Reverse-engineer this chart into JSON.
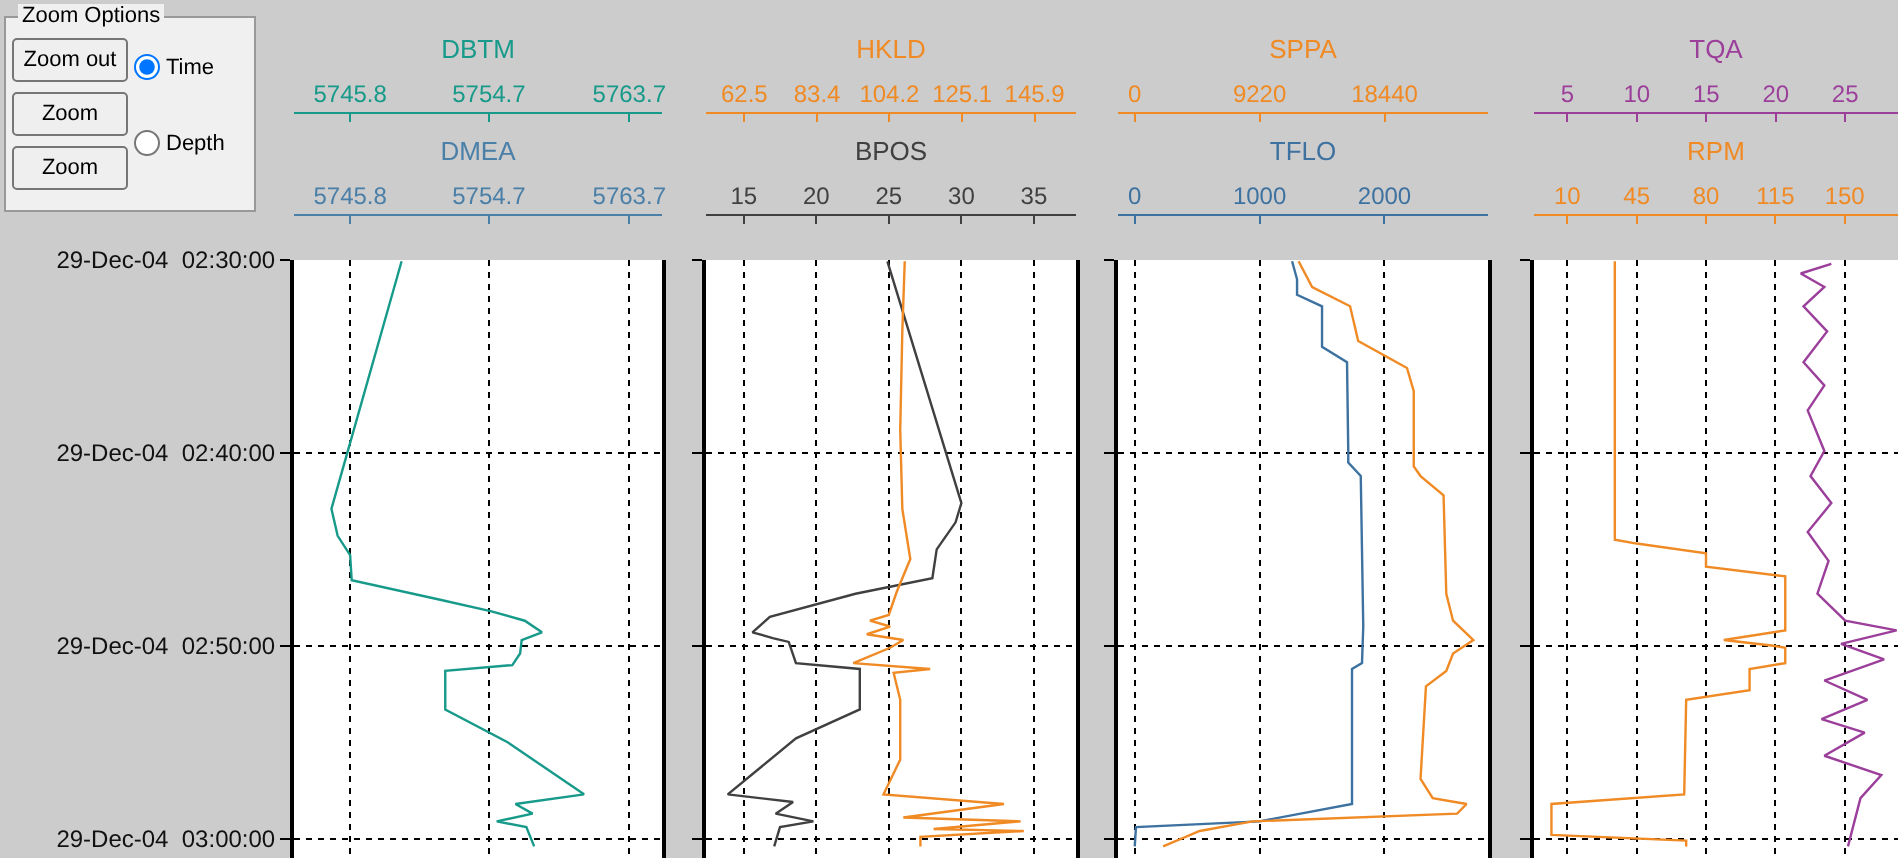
{
  "chart_data": [
    {
      "type": "line",
      "orientation": "horizontal",
      "xlabel": "DMEA",
      "x2label": "DBTM",
      "xlim": [
        5742.2,
        5765.8
      ],
      "xticks": [
        5745.8,
        5754.7,
        5763.7
      ],
      "x2lim": [
        5742.2,
        5765.8
      ],
      "x2ticks": [
        5745.8,
        5754.7,
        5763.7
      ],
      "ylim": [
        "--12-29T03:01",
        "--12-29T02:30"
      ],
      "yticks": [
        {
          "value": "--12-29T02:30",
          "label": "29-Dec-04  02:30:00"
        },
        {
          "value": "--12-29T02:40",
          "label": "29-Dec-04  02:40:00"
        },
        {
          "value": "--12-29T02:50",
          "label": "29-Dec-04  02:50:00"
        },
        {
          "value": "--12-29T03:00",
          "label": "29-Dec-04  03:00:00"
        }
      ],
      "grid": true,
      "annotations": [
        "Zoom Options",
        "Zoom out",
        "Zoom",
        "Zoom",
        "Time",
        "Depth"
      ],
      "series": [
        {
          "color": "#179a8a",
          "axis": "x2",
          "x": [
            "--12-29T02:30:04",
            "--12-29T02:42:54",
            "--12-29T02:44:18",
            "--12-29T02:45:18",
            "--12-29T02:46:36",
            "--12-29T02:47:36",
            "--12-29T02:48:12",
            "--12-29T02:48:42",
            "--12-29T02:49:18",
            "--12-29T02:49:42",
            "--12-29T02:50:24",
            "--12-29T02:51:00",
            "--12-29T02:51:18",
            "--12-29T02:53:18",
            "--12-29T02:55:00",
            "--12-29T02:57:42",
            "--12-29T02:58:12",
            "--12-29T02:58:42",
            "--12-29T02:59:06",
            "--12-29T02:59:24",
            "--12-29T03:00:24"
          ],
          "values": [
            5749.1,
            5744.6,
            5745.0,
            5745.8,
            5745.9,
            5751.5,
            5754.8,
            5757.0,
            5758.1,
            5756.8,
            5756.7,
            5756.2,
            5751.9,
            5751.9,
            5755.9,
            5760.8,
            5756.4,
            5757.5,
            5755.2,
            5757.1,
            5757.6
          ]
        }
      ]
    },
    {
      "type": "line",
      "orientation": "horizontal",
      "xlabel": "BPOS",
      "x2label": "HKLD",
      "xlim": [
        12.4,
        37.9
      ],
      "xticks": [
        15,
        20,
        25,
        30,
        35
      ],
      "x2lim": [
        51.5,
        157.8
      ],
      "x2ticks": [
        62.5,
        83.4,
        104.2,
        125.1,
        145.9
      ],
      "ylim": [
        "--12-29T03:01",
        "--12-29T02:30"
      ],
      "yticks": [
        {
          "value": "--12-29T02:30",
          "label": null
        },
        {
          "value": "--12-29T02:40",
          "label": null
        },
        {
          "value": "--12-29T02:50",
          "label": null
        },
        {
          "value": "--12-29T03:00",
          "label": null
        }
      ],
      "grid": true,
      "tick_labels": "x",
      "series": [
        {
          "color": "#404040",
          "x": [
            "--12-29T02:30:04",
            "--12-29T02:42:36",
            "--12-29T02:43:36",
            "--12-29T02:45:00",
            "--12-29T02:46:30",
            "--12-29T02:47:18",
            "--12-29T02:48:30",
            "--12-29T02:49:18",
            "--12-29T02:49:36",
            "--12-29T02:49:48",
            "--12-29T02:50:54",
            "--12-29T02:51:12",
            "--12-29T02:53:18",
            "--12-29T02:54:48",
            "--12-29T02:57:42",
            "--12-29T02:58:06",
            "--12-29T02:58:42",
            "--12-29T02:59:06",
            "--12-29T02:59:24",
            "--12-29T03:00:24"
          ],
          "values": [
            24.9,
            30.0,
            29.6,
            28.3,
            28.0,
            22.7,
            16.8,
            15.6,
            17.0,
            18.1,
            18.6,
            23.0,
            23.0,
            18.6,
            13.9,
            18.4,
            17.2,
            19.8,
            17.5,
            17.1
          ]
        },
        {
          "color": "#f08a24",
          "axis": "x2",
          "x": [
            "--12-29T02:30:04",
            "--12-29T02:33:42",
            "--12-29T02:38:48",
            "--12-29T02:42:54",
            "--12-29T02:45:30",
            "--12-29T02:47:12",
            "--12-29T02:48:24",
            "--12-29T02:48:42",
            "--12-29T02:49:00",
            "--12-29T02:49:24",
            "--12-29T02:49:42",
            "--12-29T02:50:06",
            "--12-29T02:50:54",
            "--12-29T02:51:12",
            "--12-29T02:51:24",
            "--12-29T02:52:48",
            "--12-29T02:55:54",
            "--12-29T02:57:42",
            "--12-29T02:58:12",
            "--12-29T02:58:54",
            "--12-29T02:59:06",
            "--12-29T02:59:30",
            "--12-29T02:59:36",
            "--12-29T02:59:54",
            "--12-29T03:00:24"
          ],
          "values": [
            108.6,
            107.9,
            107.3,
            107.9,
            110.2,
            106.3,
            104.0,
            98.6,
            104.4,
            97.7,
            108.2,
            104.4,
            93.8,
            115.9,
            105.4,
            107.3,
            107.3,
            102.5,
            137.1,
            108.2,
            141.9,
            116.9,
            142.8,
            113.1,
            113.1
          ]
        }
      ]
    },
    {
      "type": "line",
      "orientation": "horizontal",
      "xlabel": "TFLO",
      "x2label": "SPPA",
      "xlim": [
        -134,
        2829
      ],
      "xticks": [
        0,
        1000,
        2000
      ],
      "x2lim": [
        -1230,
        26080
      ],
      "x2ticks": [
        0,
        9220,
        18440
      ],
      "ylim": [
        "--12-29T03:01",
        "--12-29T02:30"
      ],
      "yticks": [
        {
          "value": "--12-29T02:30",
          "label": null
        },
        {
          "value": "--12-29T02:40",
          "label": null
        },
        {
          "value": "--12-29T02:50",
          "label": null
        },
        {
          "value": "--12-29T03:00",
          "label": null
        }
      ],
      "grid": true,
      "tick_labels": "x",
      "series": [
        {
          "color": "#3d72a0",
          "x": [
            "--12-29T02:30:04",
            "--12-29T02:31:00",
            "--12-29T02:31:48",
            "--12-29T02:32:24",
            "--12-29T02:34:30",
            "--12-29T02:35:18",
            "--12-29T02:39:54",
            "--12-29T02:40:30",
            "--12-29T02:41:12",
            "--12-29T02:49:00",
            "--12-29T02:50:54",
            "--12-29T02:51:12",
            "--12-29T02:58:12",
            "--12-29T02:59:06",
            "--12-29T02:59:24",
            "--12-29T03:00:24"
          ],
          "values": [
            1260,
            1300,
            1300,
            1500,
            1500,
            1700,
            1710,
            1710,
            1810,
            1830,
            1820,
            1740,
            1740,
            1000,
            10,
            0
          ]
        },
        {
          "color": "#f08a24",
          "axis": "x2",
          "x": [
            "--12-29T02:30:04",
            "--12-29T02:31:24",
            "--12-29T02:32:24",
            "--12-29T02:34:12",
            "--12-29T02:34:54",
            "--12-29T02:35:36",
            "--12-29T02:36:48",
            "--12-29T02:40:42",
            "--12-29T02:41:12",
            "--12-29T02:42:12",
            "--12-29T02:47:18",
            "--12-29T02:48:42",
            "--12-29T02:49:42",
            "--12-29T02:50:24",
            "--12-29T02:51:18",
            "--12-29T02:52:06",
            "--12-29T02:56:54",
            "--12-29T02:57:54",
            "--12-29T02:58:12",
            "--12-29T02:58:42",
            "--12-29T02:59:06",
            "--12-29T02:59:36",
            "--12-29T03:00:24"
          ],
          "values": [
            12100,
            13100,
            15900,
            16500,
            18300,
            20100,
            20600,
            20600,
            21100,
            22800,
            23000,
            23500,
            25000,
            23500,
            23000,
            21500,
            21100,
            22000,
            24500,
            23800,
            8700,
            4800,
            2100
          ]
        }
      ]
    },
    {
      "type": "line",
      "orientation": "horizontal",
      "xlabel": "RPM",
      "x2label": "TQA",
      "xlim": [
        -6.8,
        176.9
      ],
      "xticks": [
        10,
        45,
        80,
        115,
        150
      ],
      "x2lim": [
        2.6,
        28.8
      ],
      "x2ticks": [
        5,
        10,
        15,
        20,
        25
      ],
      "ylim": [
        "--12-29T03:01",
        "--12-29T02:30"
      ],
      "yticks": [
        {
          "value": "--12-29T02:30",
          "label": null
        },
        {
          "value": "--12-29T02:40",
          "label": null
        },
        {
          "value": "--12-29T02:50",
          "label": null
        },
        {
          "value": "--12-29T03:00",
          "label": null
        }
      ],
      "grid": true,
      "tick_labels": "x",
      "series": [
        {
          "color": "#f08a24",
          "x": [
            "--12-29T02:30:04",
            "--12-29T02:44:30",
            "--12-29T02:44:42",
            "--12-29T02:45:12",
            "--12-29T02:45:54",
            "--12-29T02:46:24",
            "--12-29T02:49:12",
            "--12-29T02:49:42",
            "--12-29T02:50:00",
            "--12-29T02:50:06",
            "--12-29T02:50:54",
            "--12-29T02:51:12",
            "--12-29T02:52:18",
            "--12-29T02:52:48",
            "--12-29T02:57:42",
            "--12-29T02:58:12",
            "--12-29T02:59:48",
            "--12-29T03:00:06",
            "--12-29T03:00:24"
          ],
          "values": [
            34,
            34,
            45,
            80,
            80,
            120,
            120,
            89,
            114,
            120,
            120,
            102,
            102,
            70,
            69,
            2,
            2,
            70,
            70
          ]
        },
        {
          "color": "#9b3f9b",
          "axis": "x2",
          "x": [
            "--12-29T02:30:12",
            "--12-29T02:30:42",
            "--12-29T02:31:24",
            "--12-29T02:32:24",
            "--12-29T02:33:42",
            "--12-29T02:35:18",
            "--12-29T02:36:30",
            "--12-29T02:37:48",
            "--12-29T02:39:54",
            "--12-29T02:41:12",
            "--12-29T02:42:36",
            "--12-29T02:44:06",
            "--12-29T02:45:36",
            "--12-29T02:47:18",
            "--12-29T02:48:42",
            "--12-29T02:49:12",
            "--12-29T02:49:54",
            "--12-29T02:50:42",
            "--12-29T02:51:48",
            "--12-29T02:52:48",
            "--12-29T02:53:48",
            "--12-29T02:54:30",
            "--12-29T02:55:42",
            "--12-29T02:56:42",
            "--12-29T02:57:54",
            "--12-29T03:00:24"
          ],
          "values": [
            24.0,
            21.8,
            23.5,
            22.0,
            23.7,
            22.0,
            23.5,
            22.3,
            23.5,
            22.5,
            24.0,
            22.3,
            23.8,
            23.0,
            25.0,
            28.7,
            24.7,
            27.8,
            23.5,
            26.6,
            23.3,
            26.4,
            23.5,
            27.6,
            26.1,
            25.2
          ]
        }
      ]
    }
  ]
}
